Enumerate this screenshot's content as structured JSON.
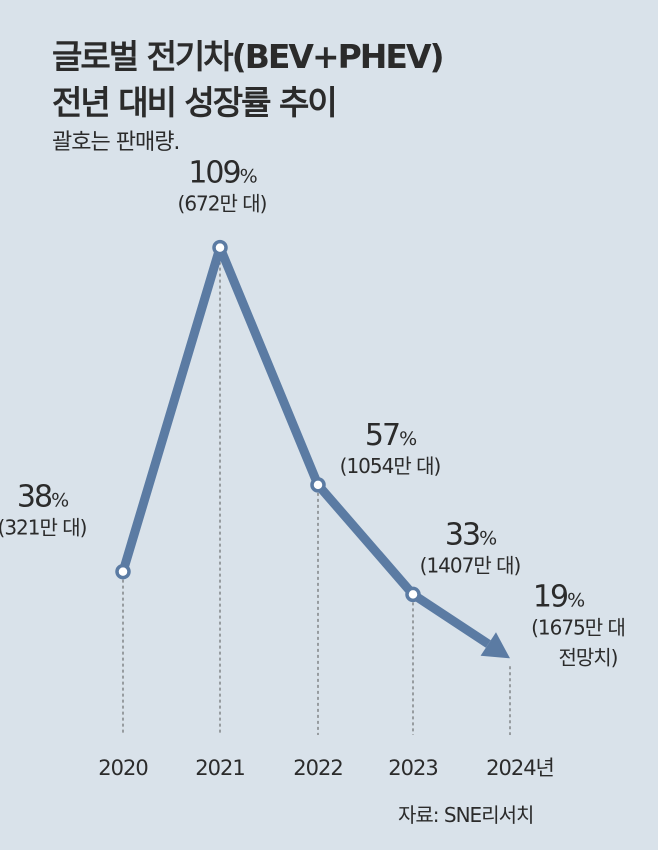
{
  "header": {
    "title_line1": "글로벌 전기차(BEV+PHEV)",
    "title_line2": "전년 대비 성장률 추이",
    "subtitle": "괄호는 판매량."
  },
  "source": "자료: SNE리서치",
  "chart_data": {
    "type": "line",
    "title": "글로벌 전기차(BEV+PHEV) 전년 대비 성장률 추이",
    "categories": [
      "2020",
      "2021",
      "2022",
      "2023",
      "2024년"
    ],
    "values": [
      38,
      109,
      57,
      33,
      19
    ],
    "unit": "%",
    "labels": [
      "38",
      "109",
      "57",
      "33",
      "19"
    ],
    "sales": [
      "(321만 대)",
      "(672만 대)",
      "(1054만 대)",
      "(1407만 대)",
      "(1675만 대"
    ],
    "sales_extra": [
      "",
      "",
      "",
      "",
      "전망치)"
    ],
    "ylim": [
      0,
      120
    ],
    "grid": false,
    "colors": {
      "line": "#5b7ba3",
      "guide": "#555555"
    }
  }
}
